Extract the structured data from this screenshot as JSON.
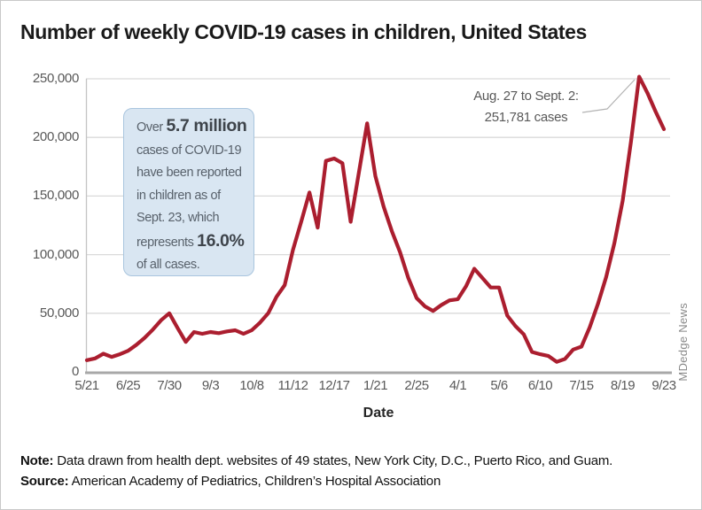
{
  "title": "Number of weekly COVID-19 cases in children, United States",
  "infobox": {
    "lines": [
      {
        "segments": [
          {
            "text": "Over ",
            "bold": false
          },
          {
            "text": "5.7 million",
            "bold": true
          }
        ]
      },
      {
        "segments": [
          {
            "text": "cases of COVID-19",
            "bold": false
          }
        ]
      },
      {
        "segments": [
          {
            "text": "have been reported",
            "bold": false
          }
        ]
      },
      {
        "segments": [
          {
            "text": "in children as of",
            "bold": false
          }
        ]
      },
      {
        "segments": [
          {
            "text": "Sept. 23, which",
            "bold": false
          }
        ]
      },
      {
        "segments": [
          {
            "text": "represents ",
            "bold": false
          },
          {
            "text": "16.0%",
            "bold": true
          }
        ]
      },
      {
        "segments": [
          {
            "text": "of all cases.",
            "bold": false
          }
        ]
      }
    ]
  },
  "callout": {
    "line1": "Aug. 27 to Sept. 2:",
    "line2": "251,781 cases"
  },
  "credit": "MDedge News",
  "footer": {
    "note_label": "Note:",
    "note_text": " Data drawn from health dept. websites of 49 states, New York City, D.C., Puerto Rico, and Guam.",
    "source_label": "Source:",
    "source_text": " American Academy of Pediatrics, Children’s Hospital Association"
  },
  "chart_data": {
    "type": "line",
    "title": "Number of weekly COVID-19 cases in children, United States",
    "xlabel": "Date",
    "ylabel": "",
    "ylim": [
      0,
      250000
    ],
    "ytick_interval": 50000,
    "ytick_labels": [
      "0",
      "50,000",
      "100,000",
      "150,000",
      "200,000",
      "250,000"
    ],
    "xtick_labels": [
      "5/21",
      "6/25",
      "7/30",
      "9/3",
      "10/8",
      "11/12",
      "12/17",
      "1/21",
      "2/25",
      "4/1",
      "5/6",
      "6/10",
      "7/15",
      "8/19",
      "9/23"
    ],
    "grid": "horizontal",
    "legend": "none",
    "line_color": "#ab1e2f",
    "x": [
      "5/21",
      "5/28",
      "6/4",
      "6/11",
      "6/18",
      "6/25",
      "7/2",
      "7/9",
      "7/16",
      "7/23",
      "7/30",
      "8/6",
      "8/13",
      "8/20",
      "8/27",
      "9/3",
      "9/10",
      "9/17",
      "9/24",
      "10/1",
      "10/8",
      "10/15",
      "10/22",
      "10/29",
      "11/5",
      "11/12",
      "11/19",
      "11/26",
      "12/3",
      "12/10",
      "12/17",
      "12/24",
      "12/31",
      "1/7",
      "1/14",
      "1/21",
      "1/28",
      "2/4",
      "2/11",
      "2/18",
      "2/25",
      "3/4",
      "3/11",
      "3/18",
      "3/25",
      "4/1",
      "4/8",
      "4/15",
      "4/22",
      "4/29",
      "5/6",
      "5/13",
      "5/20",
      "5/27",
      "6/3",
      "6/10",
      "6/17",
      "6/24",
      "7/1",
      "7/8",
      "7/15",
      "7/22",
      "7/29",
      "8/5",
      "8/12",
      "8/19",
      "8/26",
      "9/2",
      "9/9",
      "9/16",
      "9/23"
    ],
    "values": [
      10000,
      11500,
      15500,
      12800,
      15000,
      18000,
      23000,
      29000,
      36000,
      44000,
      50000,
      37500,
      25500,
      34000,
      32500,
      34000,
      33000,
      34500,
      35500,
      32500,
      35500,
      42000,
      50000,
      64000,
      74000,
      104000,
      128000,
      153000,
      123000,
      180000,
      182000,
      178000,
      128000,
      170000,
      212000,
      167000,
      141000,
      120000,
      102000,
      80000,
      63000,
      56000,
      52000,
      57000,
      61000,
      62000,
      73000,
      88000,
      80000,
      72000,
      72000,
      48000,
      39000,
      32000,
      17000,
      15000,
      13500,
      8500,
      11000,
      19000,
      21500,
      38000,
      58000,
      81000,
      110000,
      146000,
      196000,
      251781,
      238000,
      222000,
      207000
    ],
    "peak_annotation": {
      "label": "Aug. 27 to Sept. 2:",
      "value_text": "251,781 cases",
      "value": 251781
    },
    "connector_points": [
      [
        656,
        126
      ],
      [
        684,
        122
      ],
      [
        715,
        89
      ]
    ],
    "layout": {
      "x0": 97,
      "xstep": 9.3,
      "y_bottom": 419,
      "y_top": 88
    },
    "colors": {
      "line": "#ab1e2f",
      "grid": "#dadada",
      "axis": "#a8a8a8",
      "tick_text": "#595959",
      "infobox_bg": "#d9e6f2",
      "infobox_border": "#a9c5de",
      "connector": "#b3b3b3"
    }
  }
}
